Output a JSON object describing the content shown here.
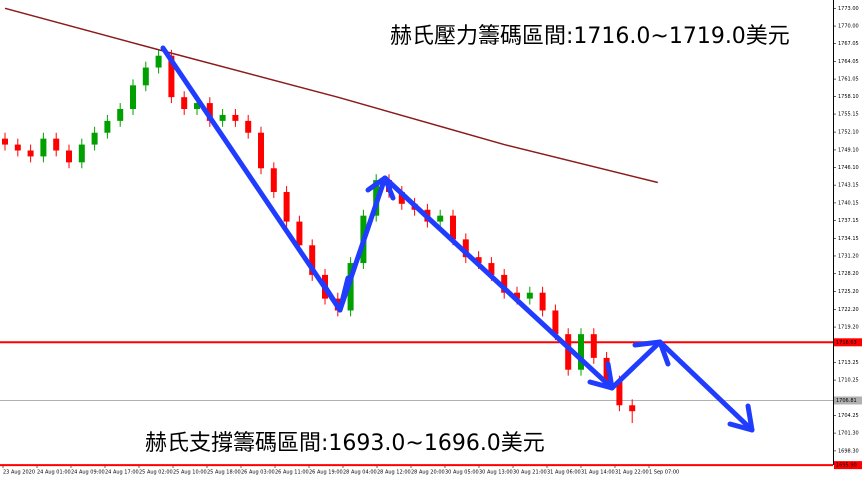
{
  "chart_data": {
    "type": "candlestick",
    "annotations": [
      "赫氏壓力籌碼區間:1716.0~1719.0美元",
      "赫氏支撐籌碼區間:1693.0~1696.0美元"
    ],
    "categories": [
      "23 Aug 2020",
      "24 Aug 01:00",
      "24 Aug 09:00",
      "24 Aug 17:00",
      "25 Aug 02:00",
      "25 Aug 10:00",
      "25 Aug 18:00",
      "26 Aug 03:00",
      "26 Aug 11:00",
      "26 Aug 19:00",
      "28 Aug 04:00",
      "28 Aug 12:00",
      "28 Aug 20:00",
      "30 Aug 05:00",
      "30 Aug 13:00",
      "30 Aug 21:00",
      "31 Aug 06:00",
      "31 Aug 14:00",
      "31 Aug 22:00",
      "1 Sep 07:00"
    ],
    "candles": {
      "up_color": "#00a000",
      "down_color": "#ff0000",
      "open": [
        1751,
        1750,
        1749,
        1748,
        1751,
        1749,
        1747,
        1750,
        1752,
        1754,
        1756,
        1760,
        1763,
        1765,
        1758,
        1756,
        1757,
        1754,
        1755,
        1754,
        1752,
        1746,
        1742,
        1737,
        1733,
        1728,
        1724,
        1722,
        1730,
        1738,
        1744,
        1742,
        1740,
        1739,
        1737,
        1738,
        1734,
        1731,
        1730,
        1728,
        1725,
        1724,
        1725,
        1722,
        1718,
        1712,
        1718,
        1714,
        1710,
        1706
      ],
      "close": [
        1750,
        1749,
        1748,
        1751,
        1749,
        1747,
        1750,
        1752,
        1754,
        1756,
        1760,
        1763,
        1765,
        1758,
        1756,
        1757,
        1754,
        1755,
        1754,
        1752,
        1746,
        1742,
        1737,
        1733,
        1728,
        1724,
        1722,
        1730,
        1738,
        1744,
        1742,
        1740,
        1739,
        1737,
        1738,
        1734,
        1731,
        1730,
        1728,
        1725,
        1724,
        1725,
        1722,
        1718,
        1712,
        1718,
        1714,
        1710,
        1706,
        1705
      ],
      "high": [
        1752,
        1751,
        1750,
        1752,
        1752,
        1750,
        1751,
        1753,
        1755,
        1757,
        1761,
        1764,
        1766,
        1766,
        1759,
        1758,
        1758,
        1756,
        1756,
        1755,
        1753,
        1747,
        1743,
        1738,
        1734,
        1729,
        1725,
        1731,
        1739,
        1745,
        1745,
        1743,
        1741,
        1740,
        1739,
        1739,
        1735,
        1732,
        1731,
        1729,
        1726,
        1726,
        1726,
        1723,
        1719,
        1719,
        1719,
        1715,
        1711,
        1707
      ],
      "low": [
        1749,
        1748,
        1747,
        1747,
        1748,
        1746,
        1746,
        1749,
        1751,
        1753,
        1755,
        1759,
        1762,
        1757,
        1755,
        1755,
        1753,
        1753,
        1753,
        1751,
        1745,
        1741,
        1736,
        1732,
        1727,
        1723,
        1721,
        1721,
        1729,
        1737,
        1741,
        1739,
        1738,
        1736,
        1736,
        1733,
        1730,
        1729,
        1727,
        1724,
        1723,
        1723,
        1721,
        1717,
        1711,
        1711,
        1713,
        1709,
        1705,
        1703
      ]
    },
    "ma": {
      "color": "#8b1a1a",
      "x": [
        0,
        12,
        26,
        39,
        51
      ],
      "values": [
        1773,
        1766,
        1758,
        1750,
        1743.6
      ]
    },
    "levels": [
      {
        "value": 1716.63,
        "label": "1716.63",
        "color": "#ff0000"
      },
      {
        "value": 1706.81,
        "label": "1706.81",
        "color": "#b0b0b0"
      },
      {
        "value": 1695.9,
        "label": "1695.90",
        "color": "#ff0000"
      }
    ],
    "ylim": [
      1695.92,
      1774.4
    ],
    "yticks": [
      {
        "value": 1773,
        "label": "1773.00"
      },
      {
        "value": 1770,
        "label": "1770.00"
      },
      {
        "value": 1767.05,
        "label": "1767.05"
      },
      {
        "value": 1764.05,
        "label": "1764.05"
      },
      {
        "value": 1761.05,
        "label": "1761.05"
      },
      {
        "value": 1758.1,
        "label": "1758.10"
      },
      {
        "value": 1755.15,
        "label": "1755.15"
      },
      {
        "value": 1752.1,
        "label": "1752.10"
      },
      {
        "value": 1749.1,
        "label": "1749.10"
      },
      {
        "value": 1746.1,
        "label": "1746.10"
      },
      {
        "value": 1743.15,
        "label": "1743.15"
      },
      {
        "value": 1740.15,
        "label": "1740.15"
      },
      {
        "value": 1737.15,
        "label": "1737.15"
      },
      {
        "value": 1734.15,
        "label": "1734.15"
      },
      {
        "value": 1731.2,
        "label": "1731.20"
      },
      {
        "value": 1728.2,
        "label": "1728.20"
      },
      {
        "value": 1725.2,
        "label": "1725.20"
      },
      {
        "value": 1722.2,
        "label": "1722.20"
      },
      {
        "value": 1719.2,
        "label": "1719.20"
      },
      {
        "value": 1713.25,
        "label": "1713.25"
      },
      {
        "value": 1710.25,
        "label": "1710.25"
      },
      {
        "value": 1704.25,
        "label": "1704.25"
      },
      {
        "value": 1701.3,
        "label": "1701.30"
      },
      {
        "value": 1698.3,
        "label": "1698.30"
      }
    ]
  }
}
